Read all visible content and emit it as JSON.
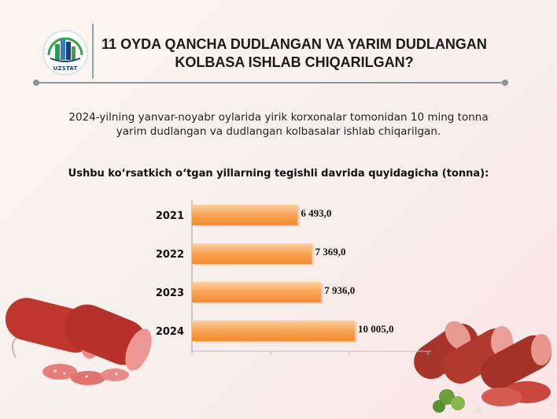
{
  "logo": {
    "text": "UZSTAT"
  },
  "header": {
    "title_line1": "11 OYDA QANCHA DUDLANGAN VA YARIM DUDLANGAN",
    "title_line2": "KOLBASA ISHLAB CHIQARILGAN?"
  },
  "intro": {
    "line1": "2024-yilning yanvar-noyabr oylarida yirik korxonalar tomonidan 10 ming tonna",
    "line2": "yarim dudlangan va dudlangan kolbasalar ishlab chiqarilgan."
  },
  "subtitle": "Ushbu ko‘rsatkich o‘tgan yillarning tegishli davrida quyidagicha (tonna):",
  "colors": {
    "bar_light": "#fdd09e",
    "bar_dark": "#f58a2a",
    "title": "#1a1a1a",
    "logo_blue": "#1d3f86",
    "logo_green": "#3aa44a"
  },
  "icons": {
    "logo": "uzstat-buildings-logo",
    "left_image": "sausage-salami-image",
    "right_image": "sausage-with-greens-image"
  },
  "chart_data": {
    "type": "bar",
    "orientation": "horizontal",
    "categories": [
      "2021",
      "2022",
      "2023",
      "2024"
    ],
    "values": [
      6493.0,
      7369.0,
      7936.0,
      10005.0
    ],
    "value_labels": [
      "6 493,0",
      "7 369,0",
      "7 936,0",
      "10 005,0"
    ],
    "title": "",
    "xlabel": "",
    "ylabel": "",
    "xlim": [
      0,
      14500
    ],
    "grid": false
  }
}
